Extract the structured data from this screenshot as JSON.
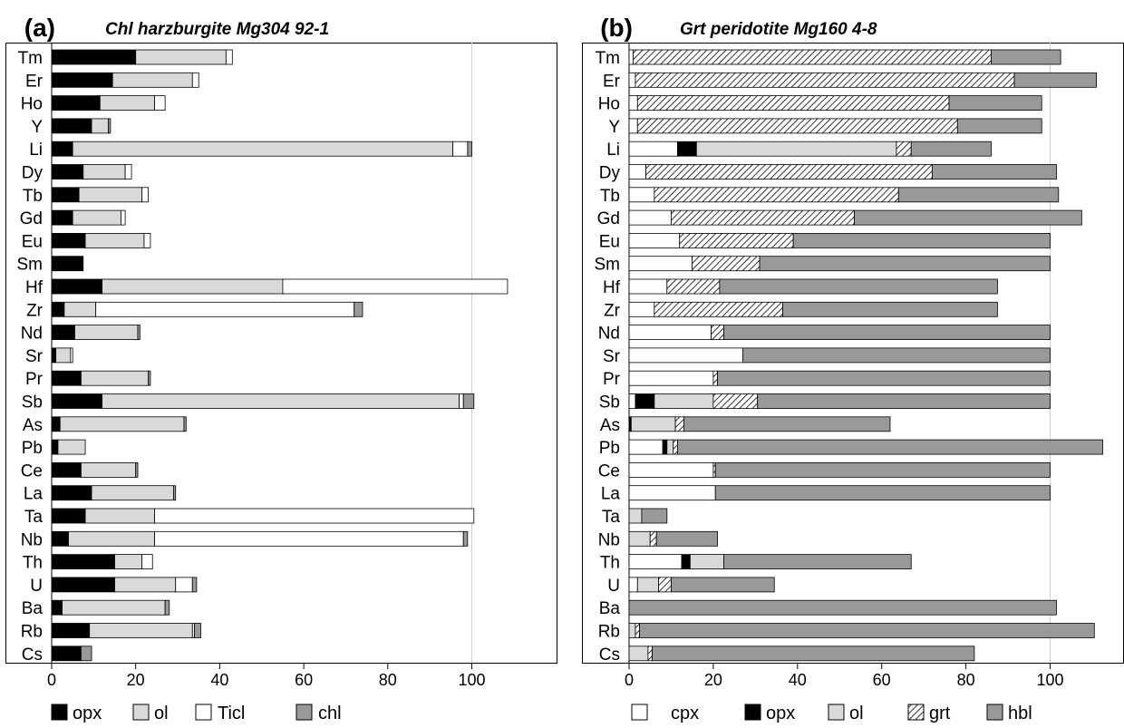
{
  "chart_data": [
    {
      "type": "bar",
      "stacked": true,
      "orientation": "horizontal",
      "panel_label": "(a)",
      "title": "Chl harzburgite Mg304 92-1",
      "xlim": [
        0,
        118
      ],
      "xticks": [
        0,
        20,
        40,
        60,
        80,
        100
      ],
      "reference_line_x": 100,
      "grid": false,
      "legend_position": "bottom",
      "categories": [
        "Tm",
        "Er",
        "Ho",
        "Y",
        "Li",
        "Dy",
        "Tb",
        "Gd",
        "Eu",
        "Sm",
        "Hf",
        "Zr",
        "Nd",
        "Sr",
        "Pr",
        "Sb",
        "As",
        "Pb",
        "Ce",
        "La",
        "Ta",
        "Nb",
        "Th",
        "U",
        "Ba",
        "Rb",
        "Cs"
      ],
      "series": [
        {
          "name": "opx",
          "color": "#000000",
          "pattern": "solid",
          "values": [
            20,
            14.5,
            11.5,
            9.5,
            5,
            7.5,
            6.5,
            5,
            8,
            7.5,
            12,
            3,
            5.5,
            1,
            7,
            12,
            2,
            1.5,
            7,
            9.5,
            8,
            4,
            15,
            15,
            2.5,
            9,
            7
          ]
        },
        {
          "name": "ol",
          "color": "#d9d9d9",
          "pattern": "solid",
          "values": [
            21.5,
            19,
            13,
            4,
            90.5,
            10,
            15,
            11.5,
            14,
            0,
            43,
            7.5,
            15,
            3.5,
            16,
            85,
            29.5,
            6.5,
            13,
            19.5,
            16.5,
            20.5,
            6.5,
            14.5,
            24.5,
            24.5,
            0
          ]
        },
        {
          "name": "Ticl",
          "color": "#ffffff",
          "pattern": "solid",
          "values": [
            1.5,
            1.5,
            2.5,
            0,
            3.5,
            1.5,
            1.5,
            1,
            1.5,
            0,
            53.5,
            61.5,
            0,
            0.5,
            0,
            1,
            0,
            0,
            0,
            0,
            76,
            73.5,
            2.5,
            4,
            0,
            0.5,
            0
          ]
        },
        {
          "name": "chl",
          "color": "#999999",
          "pattern": "solid",
          "values": [
            0,
            0,
            0,
            0.5,
            1,
            0,
            0,
            0,
            0,
            0,
            0,
            2,
            0.5,
            0,
            0.5,
            2.5,
            0.5,
            0,
            0.5,
            0.5,
            0,
            1,
            0,
            1,
            1,
            1.5,
            2.5
          ]
        }
      ]
    },
    {
      "type": "bar",
      "stacked": true,
      "orientation": "horizontal",
      "panel_label": "(b)",
      "title": "Grt peridotite Mg160 4-8",
      "xlim": [
        0,
        116
      ],
      "xticks": [
        0,
        20,
        40,
        60,
        80,
        100
      ],
      "reference_line_x": 100,
      "grid": false,
      "legend_position": "bottom",
      "categories": [
        "Tm",
        "Er",
        "Ho",
        "Y",
        "Li",
        "Dy",
        "Tb",
        "Gd",
        "Eu",
        "Sm",
        "Hf",
        "Zr",
        "Nd",
        "Sr",
        "Pr",
        "Sb",
        "As",
        "Pb",
        "Ce",
        "La",
        "Ta",
        "Nb",
        "Th",
        "U",
        "Ba",
        "Rb",
        "Cs"
      ],
      "series": [
        {
          "name": "cpx",
          "color": "#ffffff",
          "pattern": "solid",
          "values": [
            1,
            1.5,
            2,
            2,
            11.5,
            4,
            6,
            10,
            12,
            15,
            9,
            6,
            19.5,
            27,
            20,
            1.5,
            0,
            8,
            20,
            20.5,
            0,
            0,
            12.5,
            2,
            0,
            0,
            0
          ]
        },
        {
          "name": "opx",
          "color": "#000000",
          "pattern": "solid",
          "values": [
            0,
            0,
            0,
            0,
            4.5,
            0,
            0,
            0,
            0,
            0,
            0,
            0,
            0,
            0,
            0,
            4.5,
            0.5,
            1,
            0,
            0,
            0,
            0,
            2,
            0,
            0,
            0,
            0
          ]
        },
        {
          "name": "ol",
          "color": "#d9d9d9",
          "pattern": "solid",
          "values": [
            0,
            0,
            0,
            0,
            47.5,
            0,
            0,
            0,
            0,
            0,
            0,
            0,
            0,
            0,
            0,
            14,
            10.5,
            1.5,
            0,
            0,
            3,
            5,
            8,
            5,
            0,
            1.5,
            4.5
          ]
        },
        {
          "name": "grt",
          "color": "#ffffff",
          "pattern": "diagonal-hatch",
          "values": [
            85,
            90,
            74,
            76,
            3.5,
            68,
            58,
            43.5,
            27,
            16,
            12.5,
            30.5,
            3,
            0,
            1,
            10.5,
            2,
            1,
            0.5,
            0,
            0,
            1.5,
            0,
            3,
            0,
            1,
            1
          ]
        },
        {
          "name": "hbl",
          "color": "#999999",
          "pattern": "solid",
          "values": [
            16.5,
            19.5,
            22,
            20,
            19,
            29.5,
            38,
            54,
            61,
            69,
            66,
            51,
            77.5,
            73,
            79,
            69.5,
            49,
            101,
            79.5,
            79.5,
            6,
            14.5,
            44.5,
            24.5,
            101.5,
            108,
            76.5
          ]
        }
      ]
    }
  ]
}
